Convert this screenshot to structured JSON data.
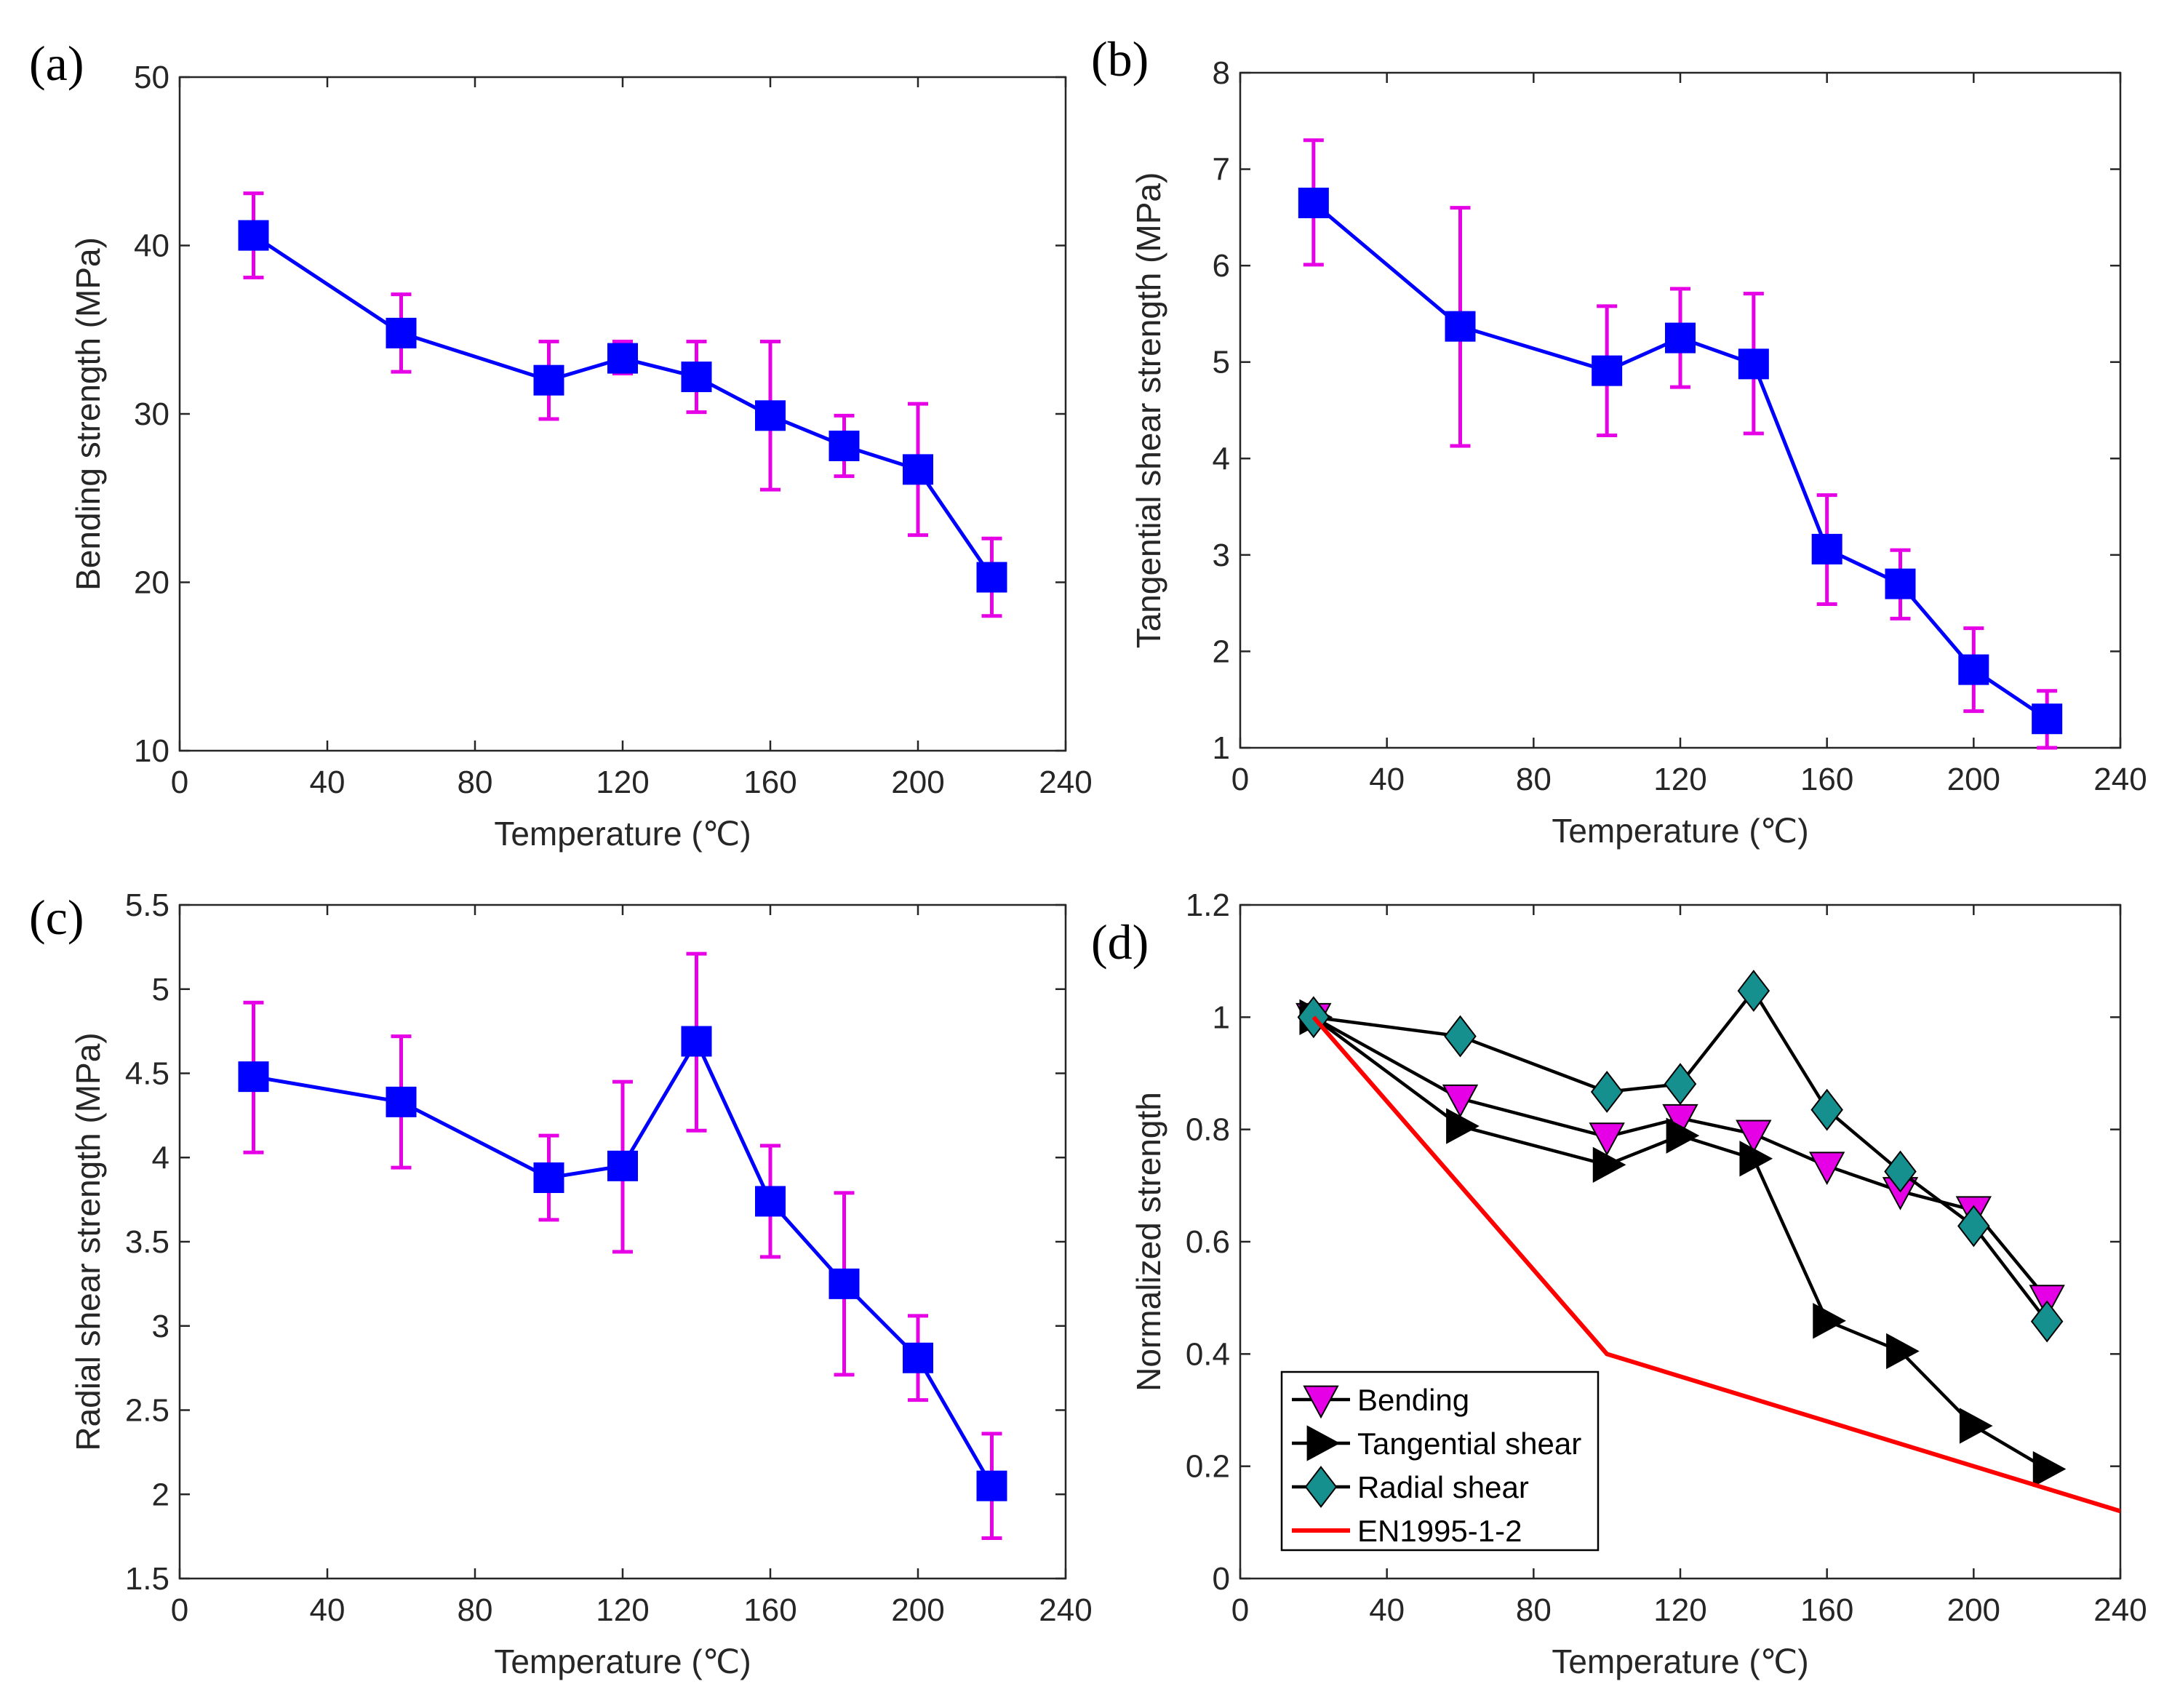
{
  "colors": {
    "axis": "#262626",
    "series_line": "#0000ff",
    "marker": "#0000ff",
    "errorbar": "#e600e6",
    "black": "#000000",
    "bending": "#e600e6",
    "radial": "#168f8f",
    "en": "#ff0000"
  },
  "chart_data": [
    {
      "id": "a",
      "panel_label": "(a)",
      "type": "line",
      "title": "",
      "xlabel": "Temperature (℃)",
      "ylabel": "Bending strength (MPa)",
      "xlim": [
        0,
        240
      ],
      "ylim": [
        10,
        50
      ],
      "xticks": [
        0,
        40,
        80,
        120,
        160,
        200,
        240
      ],
      "yticks": [
        10,
        20,
        30,
        40,
        50
      ],
      "x": [
        20,
        60,
        100,
        120,
        140,
        160,
        180,
        200,
        220
      ],
      "y": [
        40.6,
        34.8,
        32.0,
        33.3,
        32.2,
        29.9,
        28.1,
        26.7,
        20.3
      ],
      "err_low": [
        38.1,
        32.5,
        29.7,
        32.4,
        30.1,
        25.5,
        26.3,
        22.8,
        18.0
      ],
      "err_high": [
        43.1,
        37.1,
        34.3,
        34.3,
        34.3,
        34.3,
        29.9,
        30.6,
        22.6
      ],
      "marker": "square",
      "grid": false
    },
    {
      "id": "b",
      "panel_label": "(b)",
      "type": "line",
      "title": "",
      "xlabel": "Temperature (℃)",
      "ylabel": "Tangential shear strength (MPa)",
      "xlim": [
        0,
        240
      ],
      "ylim": [
        1,
        8
      ],
      "xticks": [
        0,
        40,
        80,
        120,
        160,
        200,
        240
      ],
      "yticks": [
        1,
        2,
        3,
        4,
        5,
        6,
        7,
        8
      ],
      "x": [
        20,
        60,
        100,
        120,
        140,
        160,
        180,
        200,
        220
      ],
      "y": [
        6.65,
        5.37,
        4.91,
        5.25,
        4.98,
        3.06,
        2.7,
        1.81,
        1.3
      ],
      "err_low": [
        6.01,
        4.13,
        4.24,
        4.74,
        4.26,
        2.49,
        2.34,
        1.38,
        1.0
      ],
      "err_high": [
        7.3,
        6.6,
        5.58,
        5.76,
        5.71,
        3.62,
        3.05,
        2.24,
        1.59
      ],
      "marker": "square",
      "grid": false
    },
    {
      "id": "c",
      "panel_label": "(c)",
      "type": "line",
      "title": "",
      "xlabel": "Temperature (℃)",
      "ylabel": "Radial shear strength (MPa)",
      "xlim": [
        0,
        240
      ],
      "ylim": [
        1.5,
        5.5
      ],
      "xticks": [
        0,
        40,
        80,
        120,
        160,
        200,
        240
      ],
      "yticks": [
        "1.5",
        "2",
        "2.5",
        "3",
        "3.5",
        "4",
        "4.5",
        "5",
        "5.5"
      ],
      "x": [
        20,
        60,
        100,
        120,
        140,
        160,
        180,
        200,
        220
      ],
      "y": [
        4.48,
        4.33,
        3.88,
        3.95,
        4.69,
        3.74,
        3.25,
        2.81,
        2.05
      ],
      "err_low": [
        4.03,
        3.94,
        3.63,
        3.44,
        4.16,
        3.41,
        2.71,
        2.56,
        1.74
      ],
      "err_high": [
        4.92,
        4.72,
        4.13,
        4.45,
        5.21,
        4.07,
        3.79,
        3.06,
        2.36
      ],
      "marker": "square",
      "grid": false
    },
    {
      "id": "d",
      "panel_label": "(d)",
      "type": "line",
      "title": "",
      "xlabel": "Temperature (℃)",
      "ylabel": "Normalized strength",
      "xlim": [
        0,
        240
      ],
      "ylim": [
        0,
        1.2
      ],
      "xticks": [
        0,
        40,
        80,
        120,
        160,
        200,
        240
      ],
      "yticks": [
        "0",
        "0.2",
        "0.4",
        "0.6",
        "0.8",
        "1",
        "1.2"
      ],
      "legend_position": "bottom-left",
      "series": [
        {
          "name": "Bending",
          "marker": "triangle-down",
          "x": [
            20,
            60,
            100,
            120,
            140,
            160,
            180,
            200,
            220
          ],
          "values": [
            1.0,
            0.855,
            0.787,
            0.82,
            0.792,
            0.735,
            0.69,
            0.656,
            0.498
          ]
        },
        {
          "name": "Tangential shear",
          "marker": "triangle-right",
          "x": [
            20,
            60,
            100,
            120,
            140,
            160,
            180,
            200,
            220
          ],
          "values": [
            1.0,
            0.806,
            0.737,
            0.789,
            0.748,
            0.459,
            0.405,
            0.272,
            0.195
          ]
        },
        {
          "name": "Radial shear",
          "marker": "diamond",
          "x": [
            20,
            60,
            100,
            120,
            140,
            160,
            180,
            200,
            220
          ],
          "values": [
            1.0,
            0.966,
            0.867,
            0.881,
            1.047,
            0.835,
            0.725,
            0.628,
            0.458
          ]
        },
        {
          "name": "EN1995-1-2",
          "marker": "none",
          "x": [
            20,
            100,
            240
          ],
          "values": [
            1.0,
            0.4,
            0.12
          ]
        }
      ]
    }
  ]
}
